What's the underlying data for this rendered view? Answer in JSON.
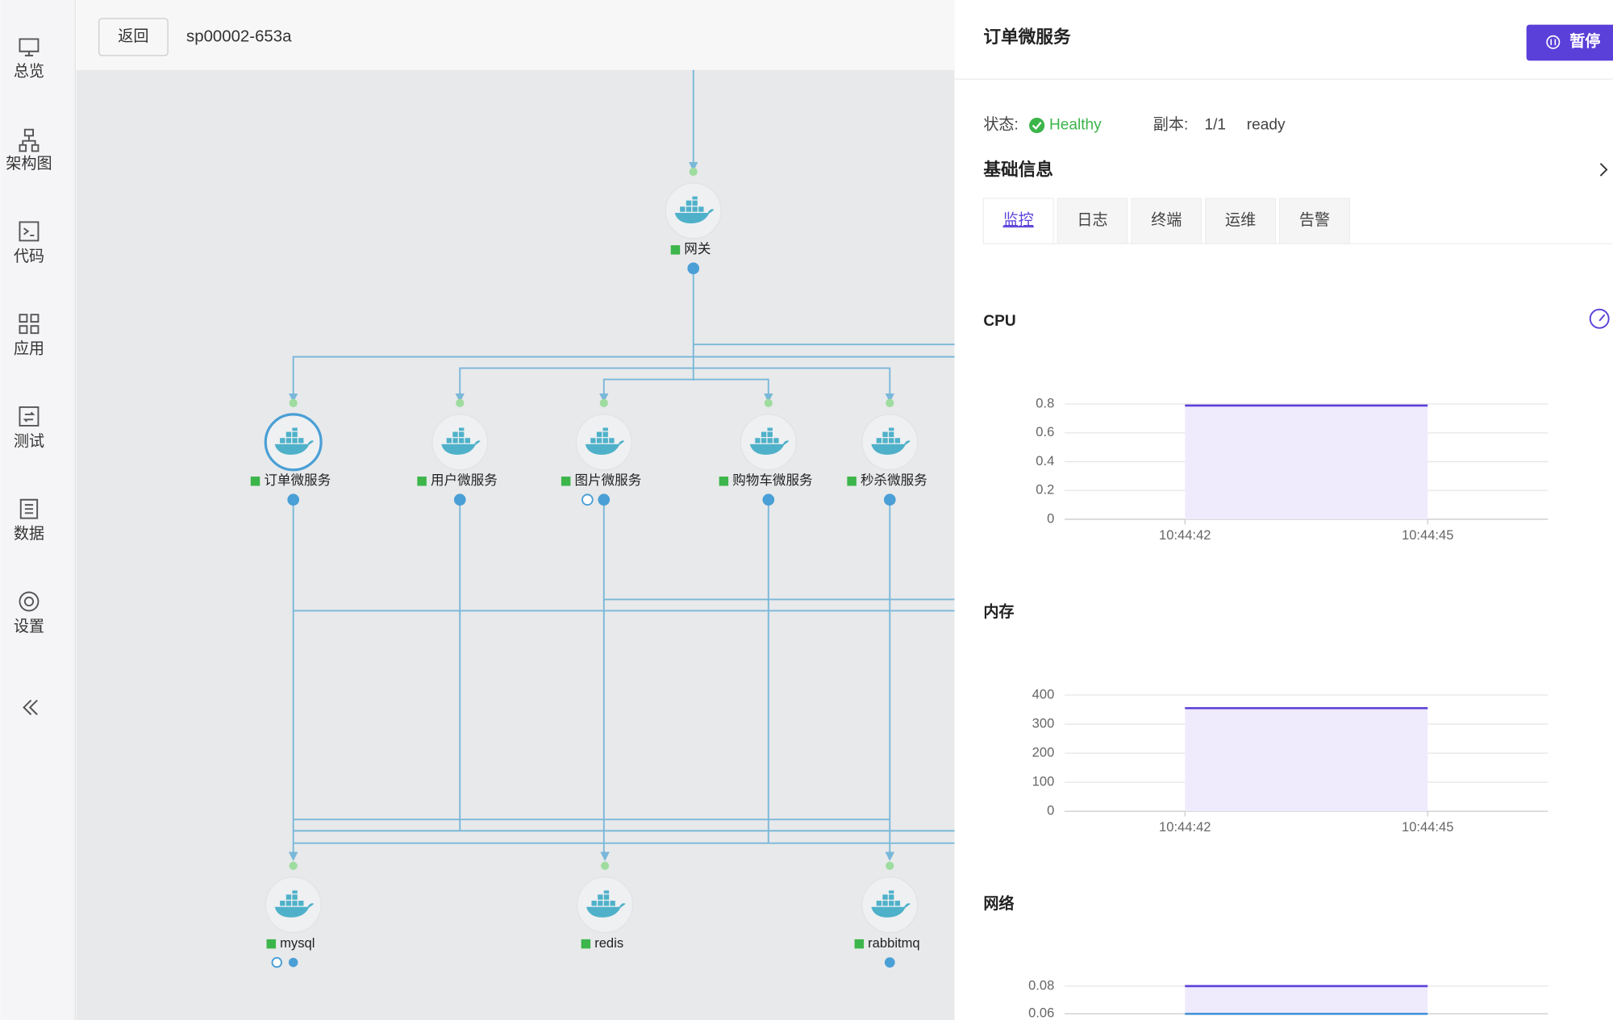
{
  "sidebar": {
    "items": [
      "总览",
      "架构图",
      "代码",
      "应用",
      "测试",
      "数据",
      "设置"
    ]
  },
  "header": {
    "back_button": "返回",
    "title": "sp00002-653a"
  },
  "topology": {
    "nodes": [
      "网关",
      "订单微服务",
      "用户微服务",
      "图片微服务",
      "购物车微服务",
      "秒杀微服务",
      "mysql",
      "redis",
      "rabbitmq"
    ]
  },
  "panel": {
    "title": "订单微服务",
    "pause_button": "暂停",
    "status_label": "状态:",
    "status": "Healthy",
    "replicas_label": "副本:",
    "replicas": "1/1",
    "ready": "ready",
    "section_title": "基础信息",
    "tabs": [
      "监控",
      "日志",
      "终端",
      "运维",
      "告警"
    ],
    "charts": [
      {
        "type": "area",
        "title": "CPU",
        "x": [
          "10:44:42",
          "10:44:45"
        ],
        "ylim": [
          0,
          0.8
        ],
        "yticks": [
          0,
          0.2,
          0.4,
          0.6,
          0.8
        ],
        "series": [
          {
            "color": "#5b3fd9",
            "values": [
              0.79,
              0.79
            ]
          }
        ]
      },
      {
        "type": "area",
        "title": "内存",
        "x": [
          "10:44:42",
          "10:44:45"
        ],
        "ylim": [
          0,
          400
        ],
        "yticks": [
          0,
          100,
          200,
          300,
          400
        ],
        "series": [
          {
            "color": "#5b3fd9",
            "values": [
              355,
              355
            ]
          }
        ]
      },
      {
        "type": "area",
        "title": "网络",
        "ylim": [
          0.06,
          0.08
        ],
        "yticks": [
          0.06,
          0.08
        ],
        "series": [
          {
            "color": "#5b3fd9",
            "values": [
              0.08,
              0.08
            ]
          },
          {
            "color": "#3f8fd6",
            "values": [
              0.06,
              0.06
            ]
          }
        ]
      }
    ]
  }
}
